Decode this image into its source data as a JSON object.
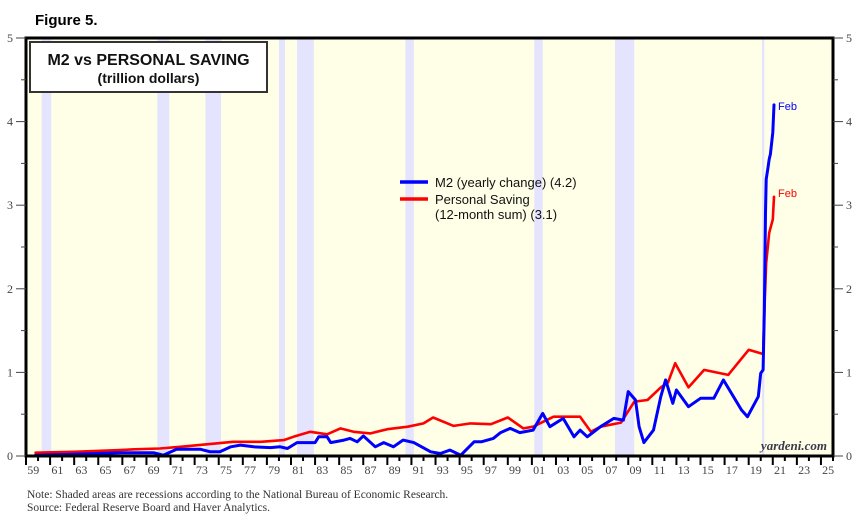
{
  "figure_label": "Figure 5.",
  "notes": [
    "Note: Shaded areas are recessions according to the National Bureau of Economic Research.",
    "Source: Federal Reserve Board and Haver Analytics."
  ],
  "watermark": "yardeni.com",
  "colors": {
    "background": "#FFFFE8",
    "recession": "#E4E4FF",
    "m2": "#0000FF",
    "saving": "#FF0000",
    "frame": "#000000"
  },
  "chart_data": {
    "type": "line",
    "title": "M2 vs PERSONAL SAVING",
    "subtitle": "(trillion dollars)",
    "xlabel": "",
    "ylabel": "",
    "xlim": [
      1959,
      2026
    ],
    "ylim": [
      0,
      5
    ],
    "grid": false,
    "legend_position": "center",
    "y_ticks": [
      "0",
      "1",
      "2",
      "3",
      "4",
      "5"
    ],
    "x_tick_labels": [
      "59",
      "61",
      "63",
      "65",
      "67",
      "69",
      "71",
      "73",
      "75",
      "77",
      "79",
      "81",
      "83",
      "85",
      "87",
      "89",
      "91",
      "93",
      "95",
      "97",
      "99",
      "01",
      "03",
      "05",
      "07",
      "09",
      "11",
      "13",
      "15",
      "17",
      "19",
      "21",
      "23",
      "25"
    ],
    "x_tick_years": [
      1959,
      1961,
      1963,
      1965,
      1967,
      1969,
      1971,
      1973,
      1975,
      1977,
      1979,
      1981,
      1983,
      1985,
      1987,
      1989,
      1991,
      1993,
      1995,
      1997,
      1999,
      2001,
      2003,
      2005,
      2007,
      2009,
      2011,
      2013,
      2015,
      2017,
      2019,
      2021,
      2023,
      2025
    ],
    "recessions": [
      [
        1960.3,
        1961.1
      ],
      [
        1969.9,
        1970.9
      ],
      [
        1973.9,
        1975.2
      ],
      [
        1980.0,
        1980.5
      ],
      [
        1981.5,
        1982.9
      ],
      [
        1990.5,
        1991.2
      ],
      [
        2001.2,
        2001.9
      ],
      [
        2007.9,
        2009.5
      ],
      [
        2020.1,
        2020.3
      ]
    ],
    "series": [
      {
        "name": "M2 (yearly change) (4.2)",
        "legend_lines": [
          "M2 (yearly change) (4.2)"
        ],
        "end_label": "Feb",
        "color": "#0000FF",
        "points": [
          [
            1959.8,
            0.01
          ],
          [
            1963,
            0.02
          ],
          [
            1966.8,
            0.04
          ],
          [
            1969.6,
            0.04
          ],
          [
            1970.4,
            0.01
          ],
          [
            1971.5,
            0.08
          ],
          [
            1973.5,
            0.08
          ],
          [
            1974.3,
            0.05
          ],
          [
            1975.1,
            0.05
          ],
          [
            1976.0,
            0.11
          ],
          [
            1976.8,
            0.13
          ],
          [
            1977.9,
            0.11
          ],
          [
            1979.3,
            0.1
          ],
          [
            1980.1,
            0.11
          ],
          [
            1980.7,
            0.09
          ],
          [
            1981.5,
            0.16
          ],
          [
            1983.0,
            0.16
          ],
          [
            1983.3,
            0.23
          ],
          [
            1984.0,
            0.23
          ],
          [
            1984.3,
            0.16
          ],
          [
            1985.4,
            0.19
          ],
          [
            1985.9,
            0.21
          ],
          [
            1986.5,
            0.17
          ],
          [
            1987.0,
            0.24
          ],
          [
            1988.0,
            0.11
          ],
          [
            1988.7,
            0.16
          ],
          [
            1989.5,
            0.11
          ],
          [
            1990.3,
            0.19
          ],
          [
            1991.2,
            0.16
          ],
          [
            1992.6,
            0.05
          ],
          [
            1993.4,
            0.03
          ],
          [
            1994.2,
            0.07
          ],
          [
            1995.1,
            0.01
          ],
          [
            1996.2,
            0.17
          ],
          [
            1996.8,
            0.17
          ],
          [
            1997.8,
            0.21
          ],
          [
            1998.4,
            0.28
          ],
          [
            1999.2,
            0.33
          ],
          [
            2000.0,
            0.28
          ],
          [
            2001.1,
            0.31
          ],
          [
            2001.9,
            0.51
          ],
          [
            2002.5,
            0.35
          ],
          [
            2003.6,
            0.45
          ],
          [
            2004.5,
            0.23
          ],
          [
            2005.0,
            0.31
          ],
          [
            2005.6,
            0.23
          ],
          [
            2006.7,
            0.35
          ],
          [
            2007.8,
            0.45
          ],
          [
            2008.6,
            0.43
          ],
          [
            2009.0,
            0.77
          ],
          [
            2009.6,
            0.67
          ],
          [
            2009.9,
            0.35
          ],
          [
            2010.3,
            0.16
          ],
          [
            2011.1,
            0.31
          ],
          [
            2011.7,
            0.71
          ],
          [
            2012.1,
            0.91
          ],
          [
            2012.7,
            0.63
          ],
          [
            2013.0,
            0.79
          ],
          [
            2014.0,
            0.59
          ],
          [
            2015.0,
            0.69
          ],
          [
            2016.1,
            0.69
          ],
          [
            2016.9,
            0.91
          ],
          [
            2018.4,
            0.55
          ],
          [
            2018.9,
            0.47
          ],
          [
            2019.8,
            0.71
          ],
          [
            2020.0,
            0.99
          ],
          [
            2020.2,
            1.03
          ],
          [
            2020.3,
            1.71
          ],
          [
            2020.4,
            2.91
          ],
          [
            2020.45,
            3.31
          ],
          [
            2020.6,
            3.45
          ],
          [
            2020.7,
            3.55
          ],
          [
            2020.8,
            3.61
          ],
          [
            2021.0,
            3.87
          ],
          [
            2021.1,
            4.2
          ]
        ]
      },
      {
        "name": "Personal Saving (12-month sum) (3.1)",
        "legend_lines": [
          "Personal Saving",
          "(12-month sum) (3.1)"
        ],
        "end_label": "Feb",
        "color": "#FF0000",
        "points": [
          [
            1959.8,
            0.04
          ],
          [
            1963,
            0.05
          ],
          [
            1966.8,
            0.07
          ],
          [
            1968,
            0.08
          ],
          [
            1970.1,
            0.09
          ],
          [
            1971.8,
            0.11
          ],
          [
            1974.0,
            0.14
          ],
          [
            1976.2,
            0.17
          ],
          [
            1978.5,
            0.17
          ],
          [
            1980.4,
            0.19
          ],
          [
            1981.2,
            0.23
          ],
          [
            1982.6,
            0.29
          ],
          [
            1984.0,
            0.26
          ],
          [
            1985.1,
            0.33
          ],
          [
            1986.2,
            0.29
          ],
          [
            1987.6,
            0.27
          ],
          [
            1989.0,
            0.32
          ],
          [
            1990.7,
            0.35
          ],
          [
            1992.0,
            0.39
          ],
          [
            1992.8,
            0.46
          ],
          [
            1994.5,
            0.36
          ],
          [
            1995.9,
            0.39
          ],
          [
            1997.6,
            0.38
          ],
          [
            1999.0,
            0.46
          ],
          [
            2000.3,
            0.33
          ],
          [
            2001.1,
            0.35
          ],
          [
            2002.8,
            0.47
          ],
          [
            2005.0,
            0.47
          ],
          [
            2005.9,
            0.29
          ],
          [
            2006.7,
            0.35
          ],
          [
            2008.4,
            0.4
          ],
          [
            2009.5,
            0.65
          ],
          [
            2010.6,
            0.67
          ],
          [
            2011.7,
            0.82
          ],
          [
            2012.3,
            0.88
          ],
          [
            2012.9,
            1.11
          ],
          [
            2014.0,
            0.82
          ],
          [
            2015.3,
            1.03
          ],
          [
            2017.3,
            0.97
          ],
          [
            2019.0,
            1.27
          ],
          [
            2020.2,
            1.22
          ],
          [
            2020.3,
            1.71
          ],
          [
            2020.45,
            2.31
          ],
          [
            2020.7,
            2.67
          ],
          [
            2021.0,
            2.83
          ],
          [
            2021.1,
            3.1
          ]
        ]
      }
    ]
  }
}
